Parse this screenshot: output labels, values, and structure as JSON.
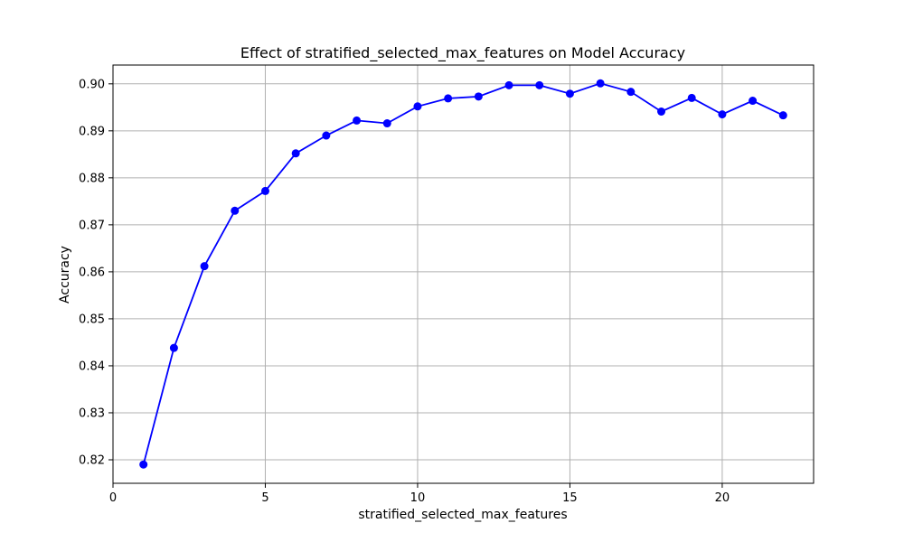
{
  "chart_data": {
    "type": "line",
    "title": "Effect of stratified_selected_max_features on Model Accuracy",
    "xlabel": "stratified_selected_max_features",
    "ylabel": "Accuracy",
    "xlim": [
      0,
      23
    ],
    "ylim": [
      0.815,
      0.904
    ],
    "x_ticks": [
      0,
      5,
      10,
      15,
      20
    ],
    "x_tick_labels": [
      "0",
      "5",
      "10",
      "15",
      "20"
    ],
    "y_ticks": [
      0.82,
      0.83,
      0.84,
      0.85,
      0.86,
      0.87,
      0.88,
      0.89,
      0.9
    ],
    "y_tick_labels": [
      "0.82",
      "0.83",
      "0.84",
      "0.85",
      "0.86",
      "0.87",
      "0.88",
      "0.89",
      "0.90"
    ],
    "grid": true,
    "series": [
      {
        "color": "#0000ff",
        "marker": "circle",
        "x": [
          1,
          2,
          3,
          4,
          5,
          6,
          7,
          8,
          9,
          10,
          11,
          12,
          13,
          14,
          15,
          16,
          17,
          18,
          19,
          20,
          21,
          22
        ],
        "y": [
          0.819,
          0.8438,
          0.8612,
          0.873,
          0.8772,
          0.8852,
          0.889,
          0.8922,
          0.8916,
          0.8952,
          0.8969,
          0.8973,
          0.8997,
          0.8997,
          0.8979,
          0.9001,
          0.8983,
          0.8941,
          0.897,
          0.8935,
          0.8964,
          0.8933
        ]
      }
    ]
  }
}
